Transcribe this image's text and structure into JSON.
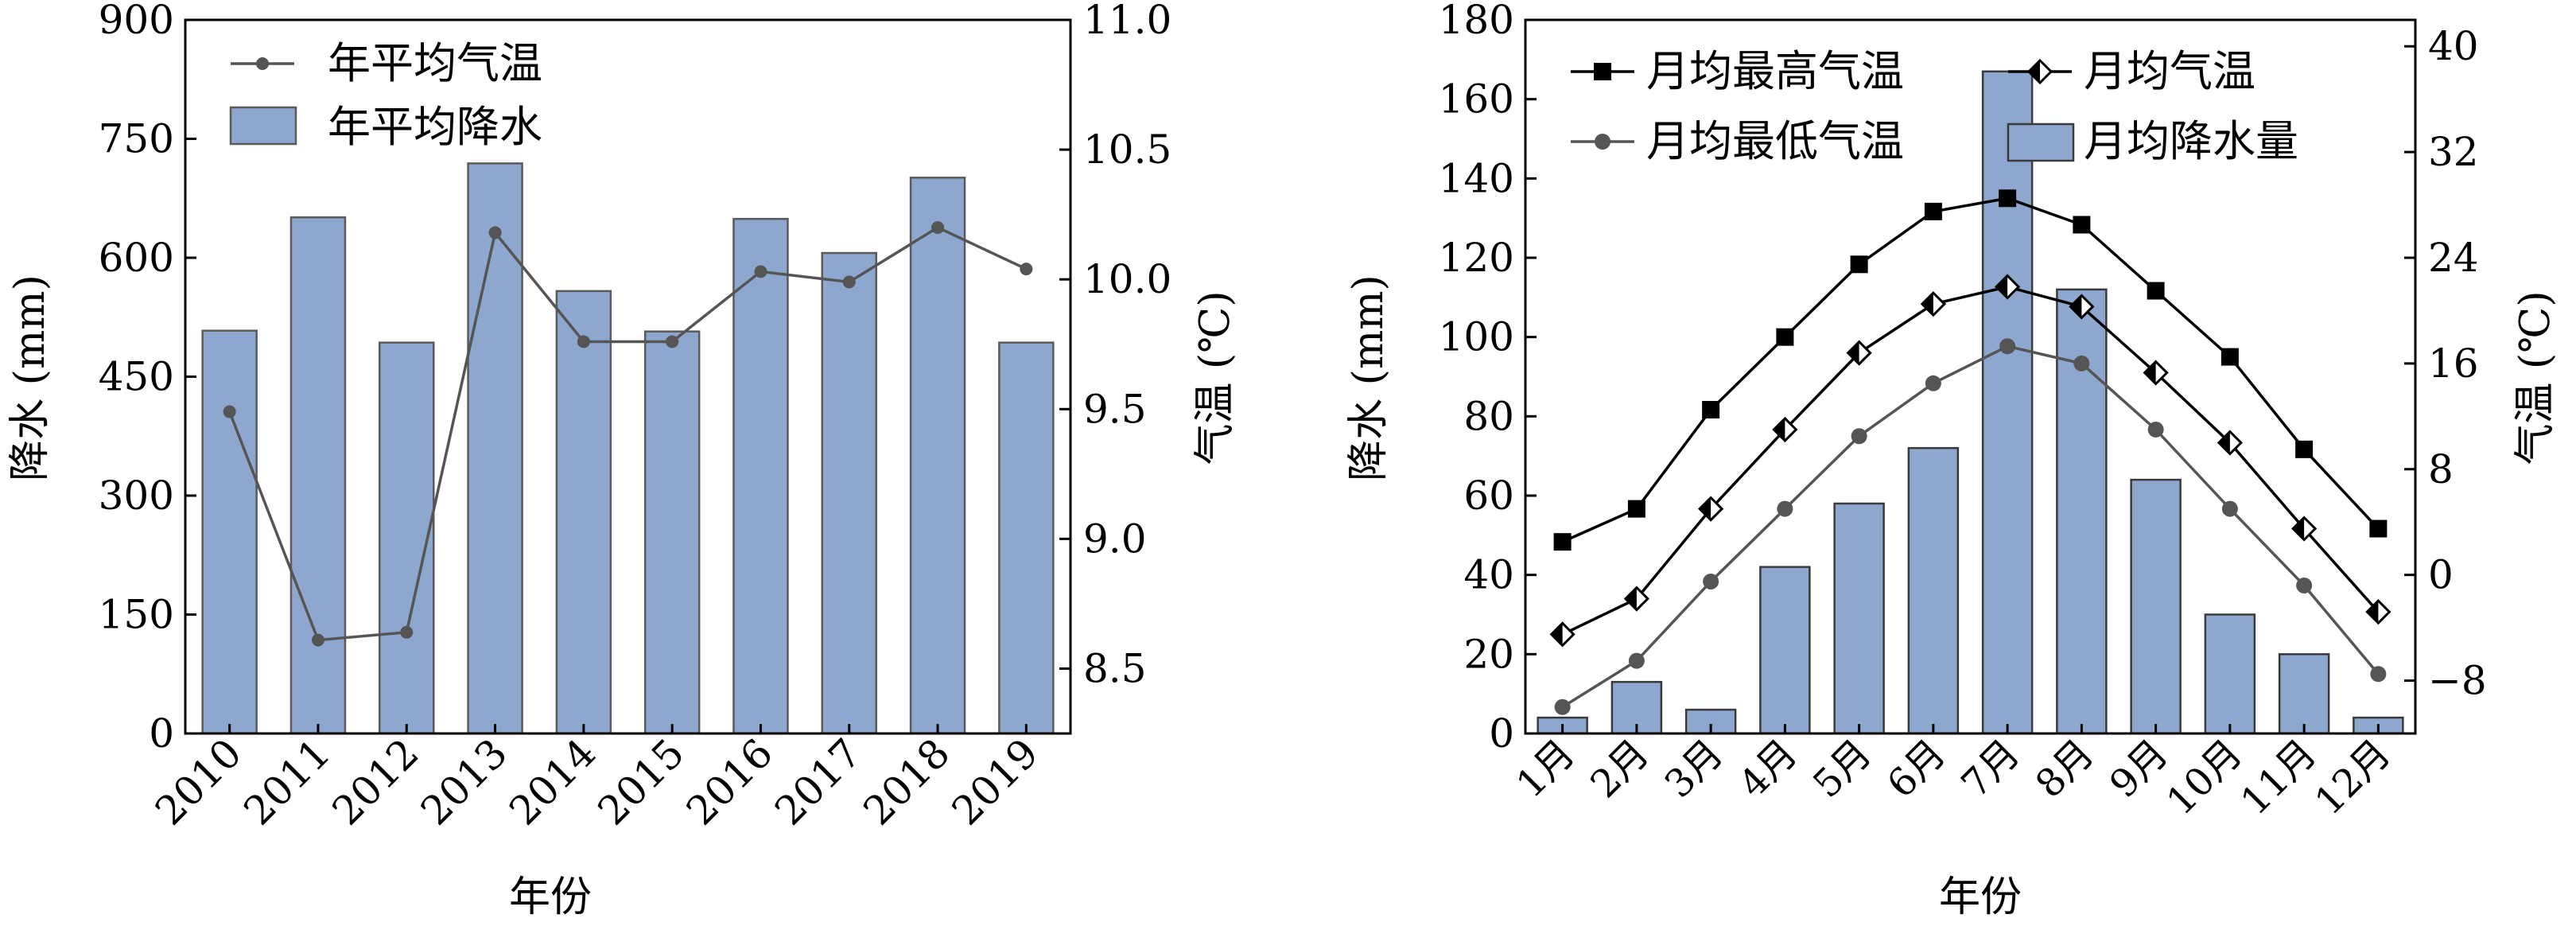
{
  "chart_data": [
    {
      "type": "bar",
      "title": "",
      "xlabel": "年份",
      "ylabel": "降水 (mm)",
      "y2label": "气温 (℃)",
      "categories": [
        "2010",
        "2011",
        "2012",
        "2013",
        "2014",
        "2015",
        "2016",
        "2017",
        "2018",
        "2019"
      ],
      "ylim": [
        0,
        900
      ],
      "yticks": [
        "0",
        "150",
        "300",
        "450",
        "600",
        "750",
        "900"
      ],
      "y2lim": [
        8.25,
        11.0
      ],
      "y2ticks": [
        "8.5",
        "9.0",
        "9.5",
        "10.0",
        "10.5",
        "11.0"
      ],
      "legend_position": "top-left",
      "bar_color": "#8ea7cf",
      "line_color": "#555555",
      "series": [
        {
          "name": "年平均降水",
          "type": "bar",
          "axis": "left",
          "values": [
            508,
            651,
            493,
            719,
            558,
            507,
            649,
            606,
            701,
            493
          ]
        },
        {
          "name": "年平均气温",
          "type": "line",
          "axis": "right",
          "values": [
            9.49,
            8.61,
            8.64,
            10.18,
            9.76,
            9.76,
            10.03,
            9.99,
            10.2,
            10.04
          ]
        }
      ]
    },
    {
      "type": "bar",
      "title": "",
      "xlabel": "年份",
      "ylabel": "降水 (mm)",
      "y2label": "气温 (℃)",
      "categories": [
        "1月",
        "2月",
        "3月",
        "4月",
        "5月",
        "6月",
        "7月",
        "8月",
        "9月",
        "10月",
        "11月",
        "12月"
      ],
      "ylim": [
        0,
        180
      ],
      "yticks": [
        "0",
        "20",
        "40",
        "60",
        "80",
        "100",
        "120",
        "140",
        "160",
        "180"
      ],
      "y2lim": [
        -12,
        42
      ],
      "y2ticks": [
        "−8",
        "0",
        "8",
        "16",
        "24",
        "32",
        "40"
      ],
      "legend_position": "top",
      "bar_color": "#8ea7cf",
      "series": [
        {
          "name": "月均降水量",
          "type": "bar",
          "axis": "left",
          "values": [
            4,
            13,
            6,
            42,
            58,
            72,
            167,
            112,
            64,
            30,
            20,
            4
          ]
        },
        {
          "name": "月均最高气温",
          "type": "line",
          "axis": "right",
          "marker": "square",
          "values": [
            2.5,
            5.0,
            12.5,
            18.0,
            23.5,
            27.5,
            28.5,
            26.5,
            21.5,
            16.5,
            9.5,
            3.5
          ]
        },
        {
          "name": "月均气温",
          "type": "line",
          "axis": "right",
          "marker": "diamond",
          "values": [
            -4.5,
            -1.8,
            5.0,
            11.0,
            16.8,
            20.5,
            21.8,
            20.3,
            15.3,
            10.0,
            3.5,
            -2.8
          ]
        },
        {
          "name": "月均最低气温",
          "type": "line",
          "axis": "right",
          "marker": "circle",
          "values": [
            -10.0,
            -6.5,
            -0.5,
            5.0,
            10.5,
            14.5,
            17.3,
            16.0,
            11.0,
            5.0,
            -0.8,
            -7.5
          ]
        }
      ]
    }
  ]
}
